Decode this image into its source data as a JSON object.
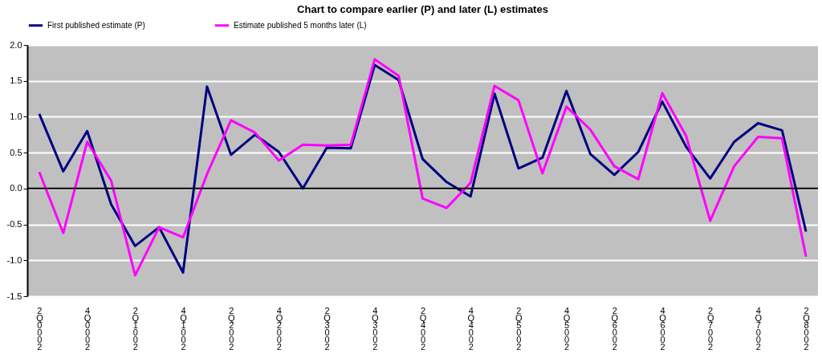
{
  "chart_data": {
    "type": "line",
    "title": "Chart to compare earlier (P) and later (L) estimates",
    "categories": [
      "2Q0002",
      null,
      "4Q0002",
      null,
      "2Q1002",
      null,
      "4Q1002",
      null,
      "2Q2002",
      null,
      "4Q2002",
      null,
      "2Q3002",
      null,
      "4Q3002",
      null,
      "2Q4002",
      null,
      "4Q4002",
      null,
      "2Q5002",
      null,
      "4Q5002",
      null,
      "2Q6002",
      null,
      "4Q6002",
      null,
      "2Q7002",
      null,
      "4Q7002",
      null,
      "2Q8002"
    ],
    "series": [
      {
        "name": "First published estimate (P)",
        "color": "#000080",
        "values": [
          1.04,
          0.24,
          0.8,
          -0.22,
          -0.8,
          -0.54,
          -1.17,
          1.42,
          0.47,
          0.75,
          0.51,
          0.0,
          0.57,
          0.56,
          1.72,
          1.51,
          0.41,
          0.09,
          -0.11,
          1.32,
          0.28,
          0.43,
          1.36,
          0.48,
          0.19,
          0.51,
          1.21,
          0.58,
          0.14,
          0.65,
          0.91,
          0.81,
          -0.6
        ]
      },
      {
        "name": "Estimate published 5 months later (L)",
        "color": "#ff00ff",
        "values": [
          0.23,
          -0.62,
          0.65,
          0.11,
          -1.21,
          -0.54,
          -0.68,
          0.2,
          0.95,
          0.78,
          0.39,
          0.61,
          0.6,
          0.61,
          1.8,
          1.57,
          -0.14,
          -0.27,
          0.08,
          1.43,
          1.23,
          0.21,
          1.14,
          0.82,
          0.31,
          0.13,
          1.33,
          0.73,
          -0.45,
          0.31,
          0.72,
          0.7,
          -0.95
        ]
      }
    ],
    "ylim": [
      -1.5,
      2.0
    ],
    "yticks": [
      {
        "value": -1.5,
        "label": "-1.5"
      },
      {
        "value": -1.0,
        "label": "-1.0"
      },
      {
        "value": -0.5,
        "label": "-0.5"
      },
      {
        "value": 0,
        "label": "0.0"
      },
      {
        "value": 0.5,
        "label": "0.5"
      },
      {
        "value": 1.0,
        "label": "1.0"
      },
      {
        "value": 1.5,
        "label": "1.5"
      },
      {
        "value": 2.0,
        "label": "2.0"
      }
    ],
    "grid": "y",
    "legend": "top",
    "marker": "none",
    "line_style": "solid"
  }
}
